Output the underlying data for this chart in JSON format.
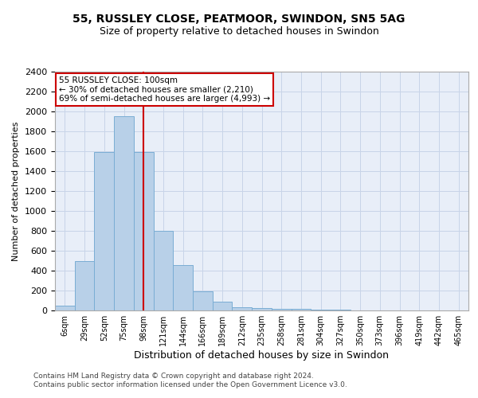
{
  "title1": "55, RUSSLEY CLOSE, PEATMOOR, SWINDON, SN5 5AG",
  "title2": "Size of property relative to detached houses in Swindon",
  "xlabel": "Distribution of detached houses by size in Swindon",
  "ylabel": "Number of detached properties",
  "footer1": "Contains HM Land Registry data © Crown copyright and database right 2024.",
  "footer2": "Contains public sector information licensed under the Open Government Licence v3.0.",
  "categories": [
    "6sqm",
    "29sqm",
    "52sqm",
    "75sqm",
    "98sqm",
    "121sqm",
    "144sqm",
    "166sqm",
    "189sqm",
    "212sqm",
    "235sqm",
    "258sqm",
    "281sqm",
    "304sqm",
    "327sqm",
    "350sqm",
    "373sqm",
    "396sqm",
    "419sqm",
    "442sqm",
    "465sqm"
  ],
  "values": [
    50,
    500,
    1590,
    1950,
    1590,
    800,
    460,
    190,
    90,
    35,
    25,
    20,
    15,
    10,
    5,
    3,
    2,
    2,
    1,
    0,
    0
  ],
  "bar_color": "#b8d0e8",
  "bar_edge_color": "#7aadd4",
  "vline_color": "#cc0000",
  "vline_idx": 4,
  "annotation_text": "55 RUSSLEY CLOSE: 100sqm\n← 30% of detached houses are smaller (2,210)\n69% of semi-detached houses are larger (4,993) →",
  "annotation_box_color": "#ffffff",
  "annotation_box_edge": "#cc0000",
  "ylim": [
    0,
    2400
  ],
  "yticks": [
    0,
    200,
    400,
    600,
    800,
    1000,
    1200,
    1400,
    1600,
    1800,
    2000,
    2200,
    2400
  ],
  "grid_color": "#c8d4e8",
  "bg_color": "#e8eef8",
  "title1_fontsize": 10,
  "title2_fontsize": 9,
  "xlabel_fontsize": 9,
  "ylabel_fontsize": 8
}
